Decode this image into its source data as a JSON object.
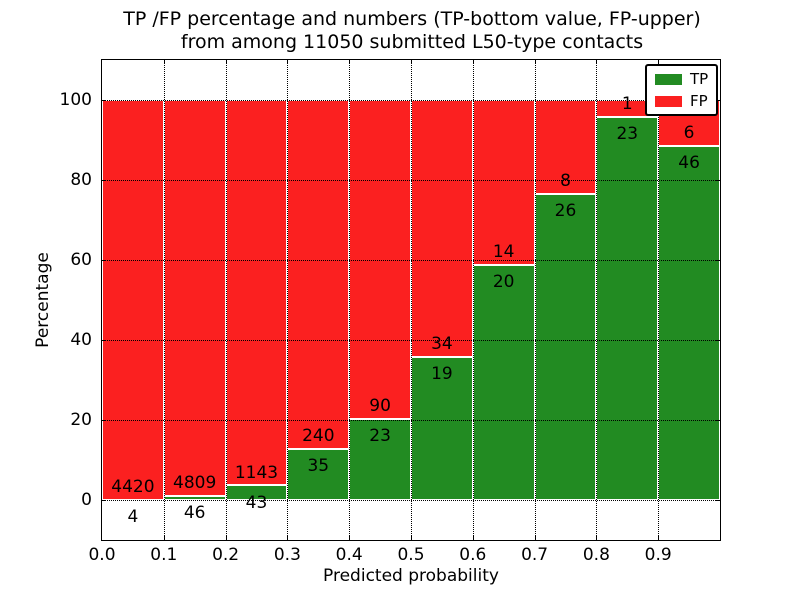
{
  "title": {
    "line1": "TP /FP percentage and numbers (TP-bottom value, FP-upper)",
    "line2": "from among 11050 submitted L50-type contacts"
  },
  "axes": {
    "xlabel": "Predicted probability",
    "ylabel": "Percentage",
    "xticks": [
      "0.0",
      "0.1",
      "0.2",
      "0.3",
      "0.4",
      "0.5",
      "0.6",
      "0.7",
      "0.8",
      "0.9"
    ],
    "yticks": [
      0,
      20,
      40,
      60,
      80,
      100
    ],
    "xlim": [
      0.0,
      1.0
    ],
    "ylim": [
      -10,
      110
    ],
    "grid_style": "dotted"
  },
  "legend": {
    "position": "upper-right",
    "items": [
      {
        "label": "TP",
        "color": "#228b22"
      },
      {
        "label": "FP",
        "color": "#fb2020"
      }
    ]
  },
  "chart_data": {
    "type": "bar",
    "stacked": true,
    "normalized_to_percent": true,
    "title": "TP /FP percentage and numbers (TP-bottom value, FP-upper) from among 11050 submitted L50-type contacts",
    "xlabel": "Predicted probability",
    "ylabel": "Percentage",
    "categories": [
      "0.0-0.1",
      "0.1-0.2",
      "0.2-0.3",
      "0.3-0.4",
      "0.4-0.5",
      "0.5-0.6",
      "0.6-0.7",
      "0.7-0.8",
      "0.8-0.9",
      "0.9-1.0"
    ],
    "bin_width": 0.1,
    "series": [
      {
        "name": "TP",
        "color": "#228b22",
        "counts": [
          4,
          46,
          43,
          35,
          23,
          19,
          20,
          26,
          23,
          46
        ],
        "percent": [
          0.09,
          0.95,
          3.63,
          12.73,
          20.35,
          35.85,
          58.82,
          76.47,
          95.83,
          88.46
        ]
      },
      {
        "name": "FP",
        "color": "#fb2020",
        "counts": [
          4420,
          4809,
          1143,
          240,
          90,
          34,
          14,
          8,
          1,
          6
        ],
        "percent": [
          99.91,
          99.05,
          96.37,
          87.27,
          79.65,
          64.15,
          41.18,
          23.53,
          4.17,
          11.54
        ]
      }
    ],
    "total_contacts": 11050,
    "ylim": [
      -10,
      110
    ],
    "xlim": [
      0.0,
      1.0
    ],
    "grid": true,
    "legend_position": "upper right"
  }
}
